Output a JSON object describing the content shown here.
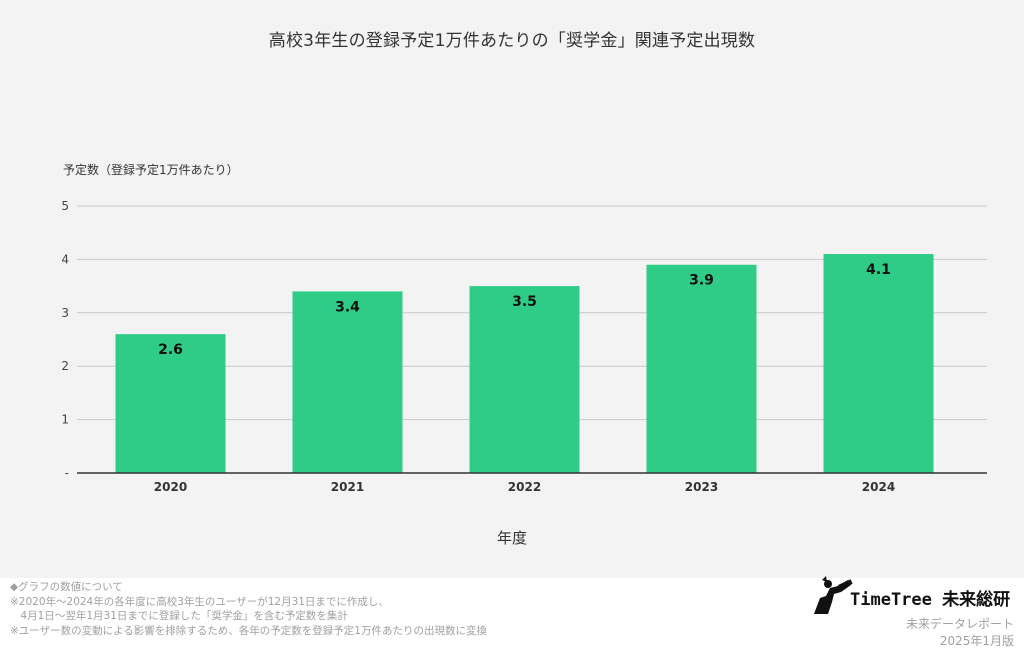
{
  "chart_data": {
    "type": "bar",
    "title": "高校3年生の登録予定1万件あたりの「奨学金」関連予定出現数",
    "xlabel": "年度",
    "ylabel": "予定数（登録予定1万件あたり）",
    "categories": [
      "2020",
      "2021",
      "2022",
      "2023",
      "2024"
    ],
    "values": [
      2.6,
      3.4,
      3.5,
      3.9,
      4.1
    ],
    "value_labels": [
      "2.6",
      "3.4",
      "3.5",
      "3.9",
      "4.1"
    ],
    "ylim": [
      0,
      5
    ],
    "yticks": [
      "-",
      "1",
      "2",
      "3",
      "4",
      "5"
    ],
    "grid": true,
    "bar_color": "#2ecc87"
  },
  "footnotes": {
    "line1": "◆グラフの数値について",
    "line2": "※2020年～2024年の各年度に高校3年生のユーザーが12月31日までに作成し、",
    "line3": "　4月1日～翌年1月31日までに登録した「奨学金」を含む予定数を集計",
    "line4": "※ユーザー数の変動による影響を排除するため、各年の予定数を登録予定1万件あたりの出現数に変換"
  },
  "brand": {
    "name": "TimeTree 未来総研",
    "logo_icon": "telescope-person-icon",
    "report_name": "未来データレポート",
    "report_date": "2025年1月版"
  },
  "colors": {
    "panel_background": "#f3f3f3",
    "bar": "#2ecc87",
    "gridline": "#c8c8c8",
    "axis": "#333333",
    "footnote_text": "#a0a0a0"
  }
}
